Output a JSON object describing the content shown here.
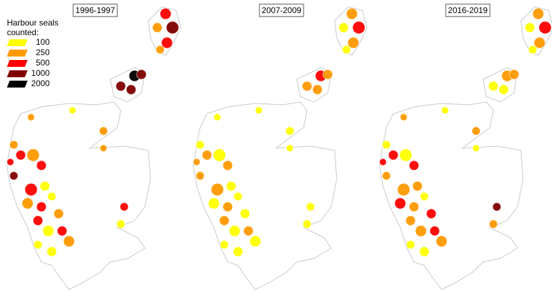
{
  "panels": [
    {
      "title": "1996-1997"
    },
    {
      "title": "2007-2009"
    },
    {
      "title": "2016-2019"
    }
  ],
  "legend": {
    "title_lines": [
      "Harbour seals",
      "counted:"
    ],
    "items": [
      {
        "label": "100",
        "color": "#ffff00"
      },
      {
        "label": "250",
        "color": "#ff9900"
      },
      {
        "label": "500",
        "color": "#ff0000"
      },
      {
        "label": "1000",
        "color": "#800000"
      },
      {
        "label": "2000",
        "color": "#000000"
      }
    ]
  }
}
